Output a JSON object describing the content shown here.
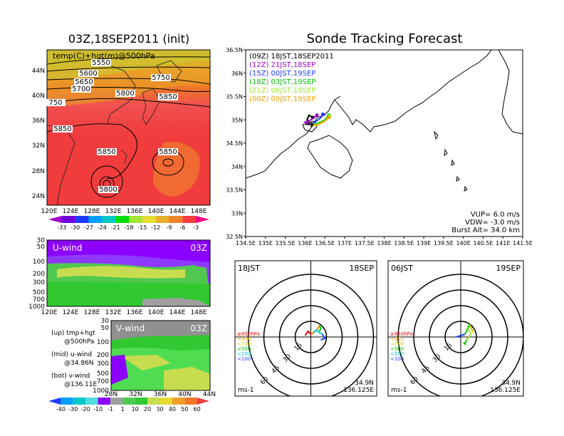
{
  "left_panel": {
    "title": "03Z,18SEP2011 (init)",
    "map_label": "temp(C)+hgt(m)@500hPa",
    "lat_ticks": [
      "44N",
      "40N",
      "36N",
      "32N",
      "28N",
      "24N"
    ],
    "lon_ticks": [
      "120E",
      "124E",
      "128E",
      "132E",
      "136E",
      "140E",
      "144E",
      "148E"
    ],
    "contour_labels": [
      "5550",
      "5600",
      "5650",
      "5700",
      "5750",
      "5800",
      "5850",
      "5850",
      "5850",
      "5850",
      "5800",
      "750"
    ],
    "temp_colorbar": {
      "ticks": [
        "-33",
        "-30",
        "-27",
        "-24",
        "-21",
        "-18",
        "-15",
        "-12",
        "-9",
        "-6",
        "-3"
      ]
    },
    "uwind": {
      "label": "U-wind",
      "time": "03Z",
      "p_ticks": [
        "30",
        "50",
        "100",
        "200",
        "300",
        "500",
        "700",
        "1000"
      ],
      "lon_ticks": [
        "120E",
        "124E",
        "128E",
        "132E",
        "136E",
        "140E",
        "144E",
        "148E"
      ]
    },
    "vwind": {
      "label": "V-wind",
      "time": "03Z",
      "p_ticks": [
        "30",
        "50",
        "100",
        "200",
        "300",
        "500",
        "700",
        "1000"
      ],
      "lat_ticks": [
        "28N",
        "32N",
        "36N",
        "40N",
        "44N"
      ]
    },
    "wind_colorbar": {
      "ticks": [
        "-40",
        "-30",
        "-20",
        "-10",
        "-1",
        "1",
        "10",
        "20",
        "30",
        "40",
        "50",
        "60"
      ]
    },
    "legend_text": [
      {
        "a": "(up)  tmp+hgt",
        "b": "@500hPa"
      },
      {
        "a": "(mid)  u-wind",
        "b": "@34.86N"
      },
      {
        "a": "(bot)  v-wind",
        "b": "@136.11E"
      }
    ]
  },
  "main_panel": {
    "title": "Sonde Tracking Forecast",
    "lat_ticks": [
      "36.5N",
      "36N",
      "35.5N",
      "35N",
      "34.5N",
      "34N",
      "33.5N",
      "33N",
      "32.5N"
    ],
    "lon_ticks": [
      "134.5E",
      "135E",
      "135.5E",
      "136E",
      "136.5E",
      "137E",
      "137.5E",
      "138E",
      "138.5E",
      "139E",
      "139.5E",
      "140E",
      "140.5E",
      "141E",
      "141.5E"
    ],
    "legend": [
      {
        "label": "(09Z)  18JST,18SEP2011",
        "color": "#000000"
      },
      {
        "label": "(12Z)  21JST,18SEP",
        "color": "#a000c8"
      },
      {
        "label": "(15Z)  00JST,19SEP",
        "color": "#1e3cff"
      },
      {
        "label": "(18Z)  03JST,19SEP",
        "color": "#00c800"
      },
      {
        "label": "(21Z)  06JST,19SEP",
        "color": "#a0e632"
      },
      {
        "label": "(00Z)  09JST,19SEP",
        "color": "#f0a000"
      }
    ],
    "params": [
      "VUP=  6.0  m/s",
      "VDW= -3.0  m/s",
      "Burst Alt=  34.0  km"
    ]
  },
  "chart_data": [
    {
      "type": "line",
      "title": "Sonde Tracking Forecast",
      "xlim": [
        134.5,
        141.5
      ],
      "ylim": [
        32.5,
        36.5
      ],
      "series": [
        {
          "name": "(09Z)  18JST,18SEP2011",
          "points": [
            [
              136.125,
              34.9
            ],
            [
              136.05,
              35.0
            ],
            [
              136.1,
              35.1
            ],
            [
              136.2,
              35.05
            ]
          ]
        },
        {
          "name": "(12Z)  21JST,18SEP",
          "points": [
            [
              136.125,
              34.9
            ],
            [
              136.0,
              34.95
            ],
            [
              136.15,
              35.0
            ],
            [
              136.3,
              35.1
            ]
          ]
        },
        {
          "name": "(15Z)  00JST,19SEP",
          "points": [
            [
              136.125,
              34.9
            ],
            [
              136.25,
              34.95
            ],
            [
              136.4,
              35.05
            ],
            [
              136.45,
              35.12
            ]
          ]
        },
        {
          "name": "(18Z)  03JST,19SEP",
          "points": [
            [
              136.125,
              34.9
            ],
            [
              136.3,
              34.92
            ],
            [
              136.5,
              35.0
            ],
            [
              136.6,
              35.1
            ]
          ]
        },
        {
          "name": "(21Z)  06JST,19SEP",
          "points": [
            [
              136.125,
              34.9
            ],
            [
              136.3,
              34.9
            ],
            [
              136.5,
              34.98
            ],
            [
              136.62,
              35.08
            ]
          ]
        },
        {
          "name": "(00Z)  09JST,19SEP",
          "points": [
            [
              136.125,
              34.9
            ],
            [
              136.28,
              34.88
            ],
            [
              136.48,
              34.96
            ],
            [
              136.6,
              35.05
            ]
          ]
        }
      ]
    },
    {
      "type": "scatter",
      "title": "18JST 18SEP",
      "rings": [
        "15",
        "30",
        "45",
        "60"
      ],
      "location": "34.9N 136.125E",
      "unit": "ms-1",
      "legend": [
        {
          "label": "≥850hPa",
          "color": "#e60000"
        },
        {
          "label": "<850",
          "color": "#f0a000"
        },
        {
          "label": "<700",
          "color": "#c8c800"
        },
        {
          "label": "<500",
          "color": "#00c800"
        },
        {
          "label": "<250",
          "color": "#00c8c8"
        },
        {
          "label": "<100",
          "color": "#1e3cff"
        }
      ]
    },
    {
      "type": "scatter",
      "title": "06JST 19SEP",
      "rings": [
        "15",
        "30",
        "45",
        "60"
      ],
      "location": "34.9N 136.125E",
      "unit": "ms-1"
    }
  ],
  "hodo1": {
    "left": "18JST",
    "right": "18SEP",
    "loc1": "34.9N",
    "loc2": "136.125E",
    "unit": "ms-1"
  },
  "hodo2": {
    "left": "06JST",
    "right": "19SEP",
    "loc1": "34.9N",
    "loc2": "136.125E",
    "unit": "ms-1"
  },
  "hodo_legend": [
    "≥850hPa",
    "<850",
    "<700",
    "<500",
    "<250",
    "<100"
  ],
  "hodo_legend_colors": [
    "#e60000",
    "#f0a000",
    "#c8c800",
    "#00c800",
    "#00c8c8",
    "#1e3cff"
  ],
  "ring_labels": [
    "15",
    "30",
    "45",
    "60"
  ]
}
